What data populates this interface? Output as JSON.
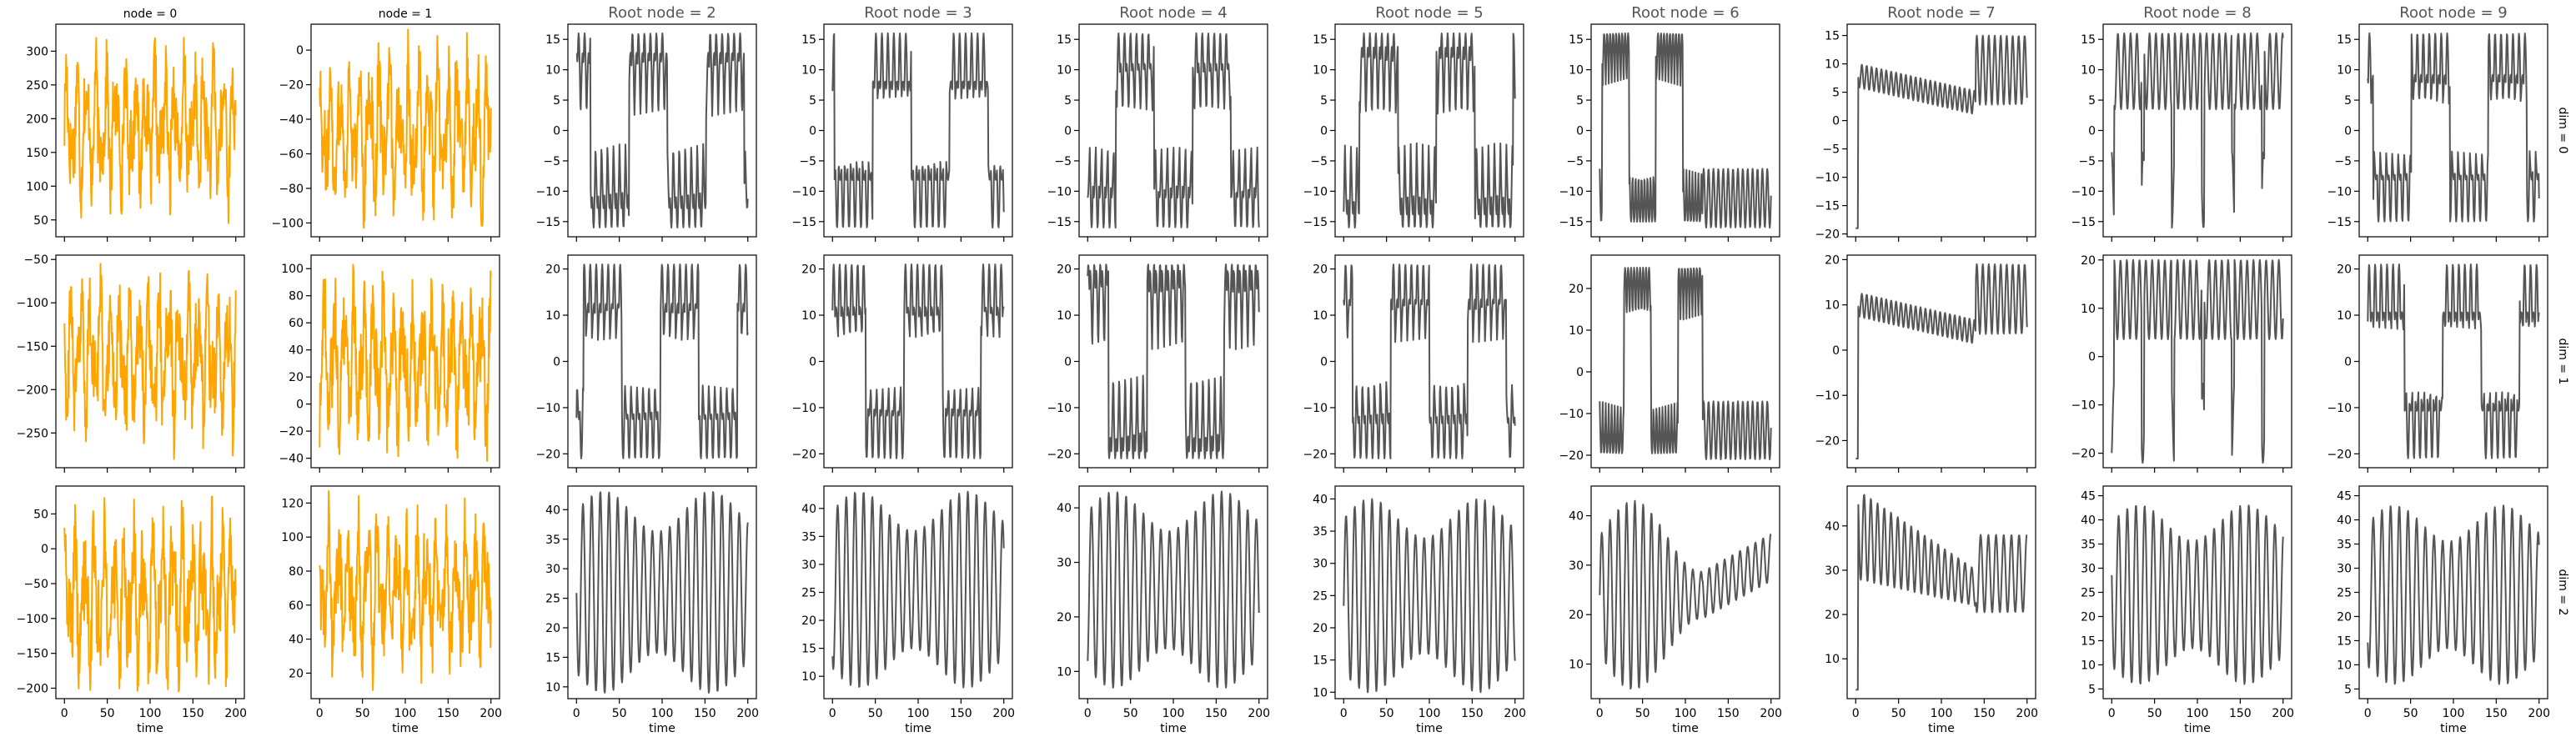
{
  "figure": {
    "xlabel": "time",
    "row_labels": [
      "dim = 0",
      "dim = 1",
      "dim = 2"
    ],
    "colors": {
      "series_orange": "#ffa500",
      "series_gray": "#555555",
      "axis": "#000000",
      "title_gray": "#555555"
    }
  },
  "chart_data": [
    {
      "type": "line",
      "title": "node = 0",
      "row": 0,
      "col": 0,
      "color": "#ffa500",
      "x_range": [
        0,
        200
      ],
      "ylim": [
        25,
        340
      ],
      "yticks": [
        50,
        100,
        150,
        200,
        250,
        300
      ],
      "xticks": [
        0,
        50,
        100,
        150,
        200
      ],
      "pattern": "noisy",
      "min": 45,
      "max": 320
    },
    {
      "type": "line",
      "title": "node = 1",
      "row": 0,
      "col": 1,
      "color": "#ffa500",
      "x_range": [
        0,
        200
      ],
      "ylim": [
        -108,
        15
      ],
      "yticks": [
        -100,
        -80,
        -60,
        -40,
        -20,
        0
      ],
      "xticks": [
        0,
        50,
        100,
        150,
        200
      ],
      "pattern": "noisy",
      "min": -103,
      "max": 12
    },
    {
      "type": "line",
      "title": "Root node = 2",
      "row": 0,
      "col": 2,
      "color": "#555555",
      "x_range": [
        0,
        200
      ],
      "ylim": [
        -17.5,
        17.5
      ],
      "yticks": [
        -15,
        -10,
        -5,
        0,
        5,
        10,
        15
      ],
      "xticks": [
        0,
        50,
        100,
        150,
        200
      ],
      "pattern": "lorenz",
      "min": -16,
      "max": 16
    },
    {
      "type": "line",
      "title": "Root node = 3",
      "row": 0,
      "col": 3,
      "color": "#555555",
      "x_range": [
        0,
        200
      ],
      "ylim": [
        -17.5,
        17.5
      ],
      "yticks": [
        -15,
        -10,
        -5,
        0,
        5,
        10,
        15
      ],
      "xticks": [
        0,
        50,
        100,
        150,
        200
      ],
      "pattern": "lorenz",
      "min": -16,
      "max": 16
    },
    {
      "type": "line",
      "title": "Root node = 4",
      "row": 0,
      "col": 4,
      "color": "#555555",
      "x_range": [
        0,
        200
      ],
      "ylim": [
        -17.5,
        17.5
      ],
      "yticks": [
        -15,
        -10,
        -5,
        0,
        5,
        10,
        15
      ],
      "xticks": [
        0,
        50,
        100,
        150,
        200
      ],
      "pattern": "lorenz",
      "min": -16,
      "max": 16
    },
    {
      "type": "line",
      "title": "Root node = 5",
      "row": 0,
      "col": 5,
      "color": "#555555",
      "x_range": [
        0,
        200
      ],
      "ylim": [
        -17.5,
        17.5
      ],
      "yticks": [
        -15,
        -10,
        -5,
        0,
        5,
        10,
        15
      ],
      "xticks": [
        0,
        50,
        100,
        150,
        200
      ],
      "pattern": "lorenz",
      "min": -16,
      "max": 16
    },
    {
      "type": "line",
      "title": "Root node = 6",
      "row": 0,
      "col": 6,
      "color": "#555555",
      "x_range": [
        0,
        200
      ],
      "ylim": [
        -17.5,
        17.5
      ],
      "yticks": [
        -15,
        -10,
        -5,
        0,
        5,
        10,
        15
      ],
      "xticks": [
        0,
        50,
        100,
        150,
        200
      ],
      "pattern": "lorenz_break",
      "break_at": 120,
      "min": -16,
      "max": 16
    },
    {
      "type": "line",
      "title": "Root node = 7",
      "row": 0,
      "col": 7,
      "color": "#555555",
      "x_range": [
        0,
        200
      ],
      "ylim": [
        -20.5,
        17
      ],
      "yticks": [
        -20,
        -15,
        -10,
        -5,
        0,
        5,
        10,
        15
      ],
      "xticks": [
        0,
        50,
        100,
        150,
        200
      ],
      "pattern": "lorenz_decay",
      "break_at": 140,
      "min": -19,
      "max": 15
    },
    {
      "type": "line",
      "title": "Root node = 8",
      "row": 0,
      "col": 8,
      "color": "#555555",
      "x_range": [
        0,
        200
      ],
      "ylim": [
        -17.5,
        17.5
      ],
      "yticks": [
        -15,
        -10,
        -5,
        0,
        5,
        10,
        15
      ],
      "xticks": [
        0,
        50,
        100,
        150,
        200
      ],
      "pattern": "lorenz_mid",
      "min": -16,
      "max": 16
    },
    {
      "type": "line",
      "title": "Root node = 9",
      "row": 0,
      "col": 9,
      "color": "#555555",
      "x_range": [
        0,
        200
      ],
      "ylim": [
        -17.5,
        17.5
      ],
      "yticks": [
        -15,
        -10,
        -5,
        0,
        5,
        10,
        15
      ],
      "xticks": [
        0,
        50,
        100,
        150,
        200
      ],
      "pattern": "lorenz",
      "min": -15,
      "max": 16
    },
    {
      "type": "line",
      "title": "",
      "row": 1,
      "col": 0,
      "color": "#ffa500",
      "x_range": [
        0,
        200
      ],
      "ylim": [
        -290,
        -45
      ],
      "yticks": [
        -250,
        -200,
        -150,
        -100,
        -50
      ],
      "xticks": [
        0,
        50,
        100,
        150,
        200
      ],
      "pattern": "noisy",
      "min": -280,
      "max": -55
    },
    {
      "type": "line",
      "title": "",
      "row": 1,
      "col": 1,
      "color": "#ffa500",
      "x_range": [
        0,
        200
      ],
      "ylim": [
        -47,
        110
      ],
      "yticks": [
        -40,
        -20,
        0,
        20,
        40,
        60,
        80,
        100
      ],
      "xticks": [
        0,
        50,
        100,
        150,
        200
      ],
      "pattern": "noisy",
      "min": -42,
      "max": 103
    },
    {
      "type": "line",
      "title": "",
      "row": 1,
      "col": 2,
      "color": "#555555",
      "x_range": [
        0,
        200
      ],
      "ylim": [
        -23,
        23
      ],
      "yticks": [
        -20,
        -10,
        0,
        10,
        20
      ],
      "xticks": [
        0,
        50,
        100,
        150,
        200
      ],
      "pattern": "lorenz",
      "min": -21,
      "max": 21
    },
    {
      "type": "line",
      "title": "",
      "row": 1,
      "col": 3,
      "color": "#555555",
      "x_range": [
        0,
        200
      ],
      "ylim": [
        -23,
        23
      ],
      "yticks": [
        -20,
        -10,
        0,
        10,
        20
      ],
      "xticks": [
        0,
        50,
        100,
        150,
        200
      ],
      "pattern": "lorenz",
      "min": -21,
      "max": 21
    },
    {
      "type": "line",
      "title": "",
      "row": 1,
      "col": 4,
      "color": "#555555",
      "x_range": [
        0,
        200
      ],
      "ylim": [
        -23,
        23
      ],
      "yticks": [
        -20,
        -10,
        0,
        10,
        20
      ],
      "xticks": [
        0,
        50,
        100,
        150,
        200
      ],
      "pattern": "lorenz",
      "min": -21,
      "max": 21
    },
    {
      "type": "line",
      "title": "",
      "row": 1,
      "col": 5,
      "color": "#555555",
      "x_range": [
        0,
        200
      ],
      "ylim": [
        -23,
        23
      ],
      "yticks": [
        -20,
        -10,
        0,
        10,
        20
      ],
      "xticks": [
        0,
        50,
        100,
        150,
        200
      ],
      "pattern": "lorenz",
      "min": -21,
      "max": 21
    },
    {
      "type": "line",
      "title": "",
      "row": 1,
      "col": 6,
      "color": "#555555",
      "x_range": [
        0,
        200
      ],
      "ylim": [
        -23,
        28
      ],
      "yticks": [
        -20,
        -10,
        0,
        10,
        20
      ],
      "xticks": [
        0,
        50,
        100,
        150,
        200
      ],
      "pattern": "lorenz_break",
      "break_at": 120,
      "min": -21,
      "max": 25
    },
    {
      "type": "line",
      "title": "",
      "row": 1,
      "col": 7,
      "color": "#555555",
      "x_range": [
        0,
        200
      ],
      "ylim": [
        -26,
        21
      ],
      "yticks": [
        -20,
        -10,
        0,
        10,
        20
      ],
      "xticks": [
        0,
        50,
        100,
        150,
        200
      ],
      "pattern": "lorenz_decay",
      "break_at": 140,
      "min": -24,
      "max": 19
    },
    {
      "type": "line",
      "title": "",
      "row": 1,
      "col": 8,
      "color": "#555555",
      "x_range": [
        0,
        200
      ],
      "ylim": [
        -23,
        21
      ],
      "yticks": [
        -20,
        -10,
        0,
        10,
        20
      ],
      "xticks": [
        0,
        50,
        100,
        150,
        200
      ],
      "pattern": "lorenz_mid",
      "min": -22,
      "max": 20
    },
    {
      "type": "line",
      "title": "",
      "row": 1,
      "col": 9,
      "color": "#555555",
      "x_range": [
        0,
        200
      ],
      "ylim": [
        -23,
        23
      ],
      "yticks": [
        -20,
        -10,
        0,
        10,
        20
      ],
      "xticks": [
        0,
        50,
        100,
        150,
        200
      ],
      "pattern": "lorenz",
      "min": -21,
      "max": 21
    },
    {
      "type": "line",
      "title": "",
      "row": 2,
      "col": 0,
      "color": "#ffa500",
      "x_range": [
        0,
        200
      ],
      "ylim": [
        -215,
        90
      ],
      "yticks": [
        -200,
        -150,
        -100,
        -50,
        0,
        50
      ],
      "xticks": [
        0,
        50,
        100,
        150,
        200
      ],
      "pattern": "noisy",
      "min": -205,
      "max": 75
    },
    {
      "type": "line",
      "title": "",
      "row": 2,
      "col": 1,
      "color": "#ffa500",
      "x_range": [
        0,
        200
      ],
      "ylim": [
        5,
        130
      ],
      "yticks": [
        20,
        40,
        60,
        80,
        100,
        120
      ],
      "xticks": [
        0,
        50,
        100,
        150,
        200
      ],
      "pattern": "noisy",
      "min": 10,
      "max": 127
    },
    {
      "type": "line",
      "title": "",
      "row": 2,
      "col": 2,
      "color": "#555555",
      "x_range": [
        0,
        200
      ],
      "ylim": [
        8,
        44
      ],
      "yticks": [
        10,
        15,
        20,
        25,
        30,
        35,
        40
      ],
      "xticks": [
        0,
        50,
        100,
        150,
        200
      ],
      "pattern": "z",
      "min": 9,
      "max": 43
    },
    {
      "type": "line",
      "title": "",
      "row": 2,
      "col": 3,
      "color": "#555555",
      "x_range": [
        0,
        200
      ],
      "ylim": [
        6,
        44
      ],
      "yticks": [
        10,
        15,
        20,
        25,
        30,
        35,
        40
      ],
      "xticks": [
        0,
        50,
        100,
        150,
        200
      ],
      "pattern": "z",
      "min": 8,
      "max": 43
    },
    {
      "type": "line",
      "title": "",
      "row": 2,
      "col": 4,
      "color": "#555555",
      "x_range": [
        0,
        200
      ],
      "ylim": [
        5,
        44
      ],
      "yticks": [
        10,
        20,
        30,
        40
      ],
      "xticks": [
        0,
        50,
        100,
        150,
        200
      ],
      "pattern": "z",
      "min": 7,
      "max": 43
    },
    {
      "type": "line",
      "title": "",
      "row": 2,
      "col": 5,
      "color": "#555555",
      "x_range": [
        0,
        200
      ],
      "ylim": [
        9,
        42
      ],
      "yticks": [
        10,
        15,
        20,
        25,
        30,
        35,
        40
      ],
      "xticks": [
        0,
        50,
        100,
        150,
        200
      ],
      "pattern": "z",
      "min": 10,
      "max": 40
    },
    {
      "type": "line",
      "title": "",
      "row": 2,
      "col": 6,
      "color": "#555555",
      "x_range": [
        0,
        200
      ],
      "ylim": [
        3,
        46
      ],
      "yticks": [
        10,
        20,
        30,
        40
      ],
      "xticks": [
        0,
        50,
        100,
        150,
        200
      ],
      "pattern": "z_break",
      "break_at": 120,
      "min": 5,
      "max": 43
    },
    {
      "type": "line",
      "title": "",
      "row": 2,
      "col": 7,
      "color": "#555555",
      "x_range": [
        0,
        200
      ],
      "ylim": [
        1,
        49
      ],
      "yticks": [
        10,
        20,
        30,
        40
      ],
      "xticks": [
        0,
        50,
        100,
        150,
        200
      ],
      "pattern": "z_decay",
      "break_at": 140,
      "min": 3,
      "max": 47
    },
    {
      "type": "line",
      "title": "",
      "row": 2,
      "col": 8,
      "color": "#555555",
      "x_range": [
        0,
        200
      ],
      "ylim": [
        3,
        47
      ],
      "yticks": [
        5,
        10,
        15,
        20,
        25,
        30,
        35,
        40,
        45
      ],
      "xticks": [
        0,
        50,
        100,
        150,
        200
      ],
      "pattern": "z",
      "min": 6,
      "max": 43
    },
    {
      "type": "line",
      "title": "",
      "row": 2,
      "col": 9,
      "color": "#555555",
      "x_range": [
        0,
        200
      ],
      "ylim": [
        3,
        47
      ],
      "yticks": [
        5,
        10,
        15,
        20,
        25,
        30,
        35,
        40,
        45
      ],
      "xticks": [
        0,
        50,
        100,
        150,
        200
      ],
      "pattern": "z",
      "min": 6,
      "max": 43
    }
  ]
}
